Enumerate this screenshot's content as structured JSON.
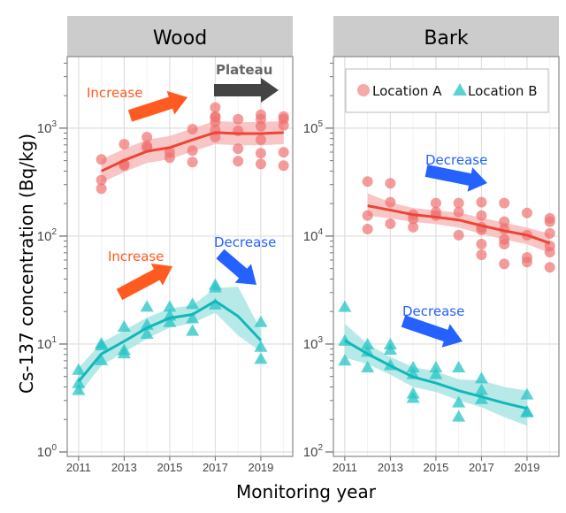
{
  "chart_data": {
    "type": "scatter",
    "scale_y": "log",
    "xlabel": "Monitoring year",
    "ylabel": "Cs-137 concentration (Bq/kg)",
    "grid": true,
    "legend": {
      "placement": "top (inside Bark panel)",
      "entries": [
        {
          "name": "Location A",
          "marker": "circle",
          "color": "#f07070"
        },
        {
          "name": "Location B",
          "marker": "triangle",
          "color": "#26c4c4"
        }
      ]
    },
    "colors": {
      "location_a_points": "#f07070",
      "location_a_line": "#ee4433",
      "location_a_band": "#f8b8b8",
      "location_b_points": "#26c4c4",
      "location_b_line": "#10b8b8",
      "location_b_band": "#a6e3e3",
      "increase": "#ff5a1f",
      "decrease": "#2461ff",
      "plateau": "#444444"
    },
    "panels": [
      {
        "title": "Wood",
        "xticks": [
          "2011",
          "2013",
          "2015",
          "2017",
          "2019"
        ],
        "yticks": [
          {
            "label": "10",
            "exp": "0",
            "value": 1
          },
          {
            "label": "10",
            "exp": "1",
            "value": 10
          },
          {
            "label": "10",
            "exp": "2",
            "value": 100
          },
          {
            "label": "10",
            "exp": "3",
            "value": 1000
          }
        ],
        "xlim": [
          2010.5,
          2020.4
        ],
        "ylim": [
          0.91,
          4600
        ],
        "series": [
          {
            "name": "Location A",
            "points": [
              [
                2012,
                513
              ],
              [
                2012,
                331
              ],
              [
                2012,
                275
              ],
              [
                2013,
                710
              ],
              [
                2013,
                466
              ],
              [
                2013,
                450
              ],
              [
                2014,
                826
              ],
              [
                2014,
                683
              ],
              [
                2014,
                660
              ],
              [
                2015,
                598
              ],
              [
                2015,
                533
              ],
              [
                2016,
                980
              ],
              [
                2016,
                620
              ],
              [
                2016,
                485
              ],
              [
                2017,
                1550
              ],
              [
                2017,
                1280
              ],
              [
                2017,
                1260
              ],
              [
                2017,
                1140
              ],
              [
                2017,
                963
              ],
              [
                2017,
                826
              ],
              [
                2018,
                1210
              ],
              [
                2018,
                945
              ],
              [
                2018,
                645
              ],
              [
                2018,
                494
              ],
              [
                2019,
                1330
              ],
              [
                2019,
                1210
              ],
              [
                2019,
                1040
              ],
              [
                2019,
                780
              ],
              [
                2019,
                586
              ],
              [
                2019,
                466
              ],
              [
                2020,
                1280
              ],
              [
                2020,
                1210
              ],
              [
                2020,
                1060
              ],
              [
                2020,
                598
              ],
              [
                2020,
                450
              ]
            ],
            "trend_x": [
              2012,
              2013,
              2014,
              2015,
              2016,
              2017,
              2018,
              2019,
              2020
            ],
            "trend": [
              400,
              503,
              610,
              660,
              780,
              910,
              890,
              890,
              910
            ],
            "lower": [
              312,
              392,
              476,
              515,
              608,
              710,
              694,
              694,
              710
            ],
            "upper": [
              512,
              644,
              781,
              845,
              998,
              1165,
              1139,
              1139,
              1165
            ]
          },
          {
            "name": "Location B",
            "points": [
              [
                2011,
                5.7
              ],
              [
                2011,
                4.3
              ],
              [
                2011,
                3.7
              ],
              [
                2012,
                10
              ],
              [
                2012,
                9.6
              ],
              [
                2012,
                7.0
              ],
              [
                2013,
                14.3
              ],
              [
                2013,
                8.7
              ],
              [
                2013,
                8.1
              ],
              [
                2014,
                21.9
              ],
              [
                2014,
                14.9
              ],
              [
                2014,
                12.3
              ],
              [
                2015,
                21.9
              ],
              [
                2015,
                18.1
              ],
              [
                2015,
                15.8
              ],
              [
                2016,
                23.2
              ],
              [
                2016,
                17.1
              ],
              [
                2016,
                13.1
              ],
              [
                2017,
                35
              ],
              [
                2017,
                33
              ],
              [
                2017,
                23
              ],
              [
                2019,
                15.8
              ],
              [
                2019,
                9.3
              ],
              [
                2019,
                7.2
              ]
            ],
            "trend_x": [
              2011,
              2012,
              2013,
              2014,
              2015,
              2016,
              2017,
              2018,
              2019
            ],
            "trend": [
              4.5,
              8.1,
              10.6,
              14.1,
              17.4,
              18.8,
              25,
              18.1,
              10.8
            ],
            "lower": [
              3.4,
              6.3,
              8.4,
              11.2,
              14.2,
              15.6,
              19.5,
              12,
              8.5
            ],
            "upper": [
              6.0,
              10.3,
              13.4,
              17.6,
              21.4,
              22.8,
              33,
              34,
              13.5
            ]
          }
        ],
        "annotations": [
          {
            "text": "Increase",
            "kind": "increase"
          },
          {
            "text": "Plateau",
            "kind": "plateau"
          },
          {
            "text": "Increase",
            "kind": "increase"
          },
          {
            "text": "Decrease",
            "kind": "decrease"
          }
        ]
      },
      {
        "title": "Bark",
        "xticks": [
          "2011",
          "2013",
          "2015",
          "2017",
          "2019"
        ],
        "yticks": [
          {
            "label": "10",
            "exp": "2",
            "value": 100
          },
          {
            "label": "10",
            "exp": "3",
            "value": 1000
          },
          {
            "label": "10",
            "exp": "4",
            "value": 10000
          },
          {
            "label": "10",
            "exp": "5",
            "value": 100000
          }
        ],
        "xlim": [
          2010.5,
          2020.4
        ],
        "ylim": [
          91,
          460000
        ],
        "series": [
          {
            "name": "Location A",
            "points": [
              [
                2012,
                32000
              ],
              [
                2012,
                15500
              ],
              [
                2012,
                11600
              ],
              [
                2013,
                30800
              ],
              [
                2013,
                20600
              ],
              [
                2013,
                13000
              ],
              [
                2014,
                15800
              ],
              [
                2014,
                14400
              ],
              [
                2014,
                12100
              ],
              [
                2015,
                20200
              ],
              [
                2015,
                16700
              ],
              [
                2015,
                15500
              ],
              [
                2016,
                20200
              ],
              [
                2016,
                16700
              ],
              [
                2016,
                10200
              ],
              [
                2017,
                20600
              ],
              [
                2017,
                15500
              ],
              [
                2017,
                12100
              ],
              [
                2017,
                11400
              ],
              [
                2017,
                8420
              ],
              [
                2017,
                6700
              ],
              [
                2018,
                20200
              ],
              [
                2018,
                13600
              ],
              [
                2018,
                11600
              ],
              [
                2018,
                9300
              ],
              [
                2018,
                8420
              ],
              [
                2018,
                5530
              ],
              [
                2019,
                16400
              ],
              [
                2019,
                10200
              ],
              [
                2019,
                6330
              ],
              [
                2019,
                5750
              ],
              [
                2020,
                14600
              ],
              [
                2020,
                13600
              ],
              [
                2020,
                10600
              ],
              [
                2020,
                8100
              ],
              [
                2020,
                7100
              ],
              [
                2020,
                5130
              ]
            ],
            "trend_x": [
              2012,
              2013,
              2014,
              2015,
              2016,
              2017,
              2018,
              2019,
              2020
            ],
            "trend": [
              19100,
              17400,
              15800,
              15000,
              14100,
              12500,
              11200,
              10200,
              8600
            ],
            "lower": [
              15500,
              14600,
              13500,
              12900,
              12000,
              10500,
              9300,
              8400,
              7000
            ],
            "upper": [
              25000,
              20500,
              18200,
              17300,
              16500,
              14800,
              13300,
              12000,
              10500
            ]
          },
          {
            "name": "Location B",
            "points": [
              [
                2011,
                2180
              ],
              [
                2011,
                1060
              ],
              [
                2011,
                695
              ],
              [
                2012,
                980
              ],
              [
                2012,
                840
              ],
              [
                2012,
                600
              ],
              [
                2013,
                980
              ],
              [
                2013,
                875
              ],
              [
                2013,
                630
              ],
              [
                2014,
                600
              ],
              [
                2014,
                520
              ],
              [
                2014,
                344
              ],
              [
                2014,
                313
              ],
              [
                2015,
                600
              ],
              [
                2015,
                520
              ],
              [
                2016,
                600
              ],
              [
                2016,
                284
              ],
              [
                2016,
                210
              ],
              [
                2017,
                475
              ],
              [
                2017,
                370
              ],
              [
                2017,
                306
              ],
              [
                2019,
                337
              ],
              [
                2019,
                235
              ],
              [
                2019,
                230
              ]
            ],
            "trend_x": [
              2011,
              2012,
              2013,
              2014,
              2015,
              2016,
              2017,
              2018,
              2019
            ],
            "trend": [
              1080,
              810,
              630,
              495,
              435,
              370,
              325,
              284,
              253
            ],
            "lower": [
              750,
              650,
              520,
              400,
              360,
              300,
              260,
              210,
              175
            ],
            "upper": [
              1550,
              1000,
              760,
              610,
              560,
              470,
              460,
              400,
              370
            ]
          }
        ],
        "annotations": [
          {
            "text": "Decrease",
            "kind": "decrease"
          },
          {
            "text": "Decrease",
            "kind": "decrease"
          }
        ]
      }
    ]
  }
}
